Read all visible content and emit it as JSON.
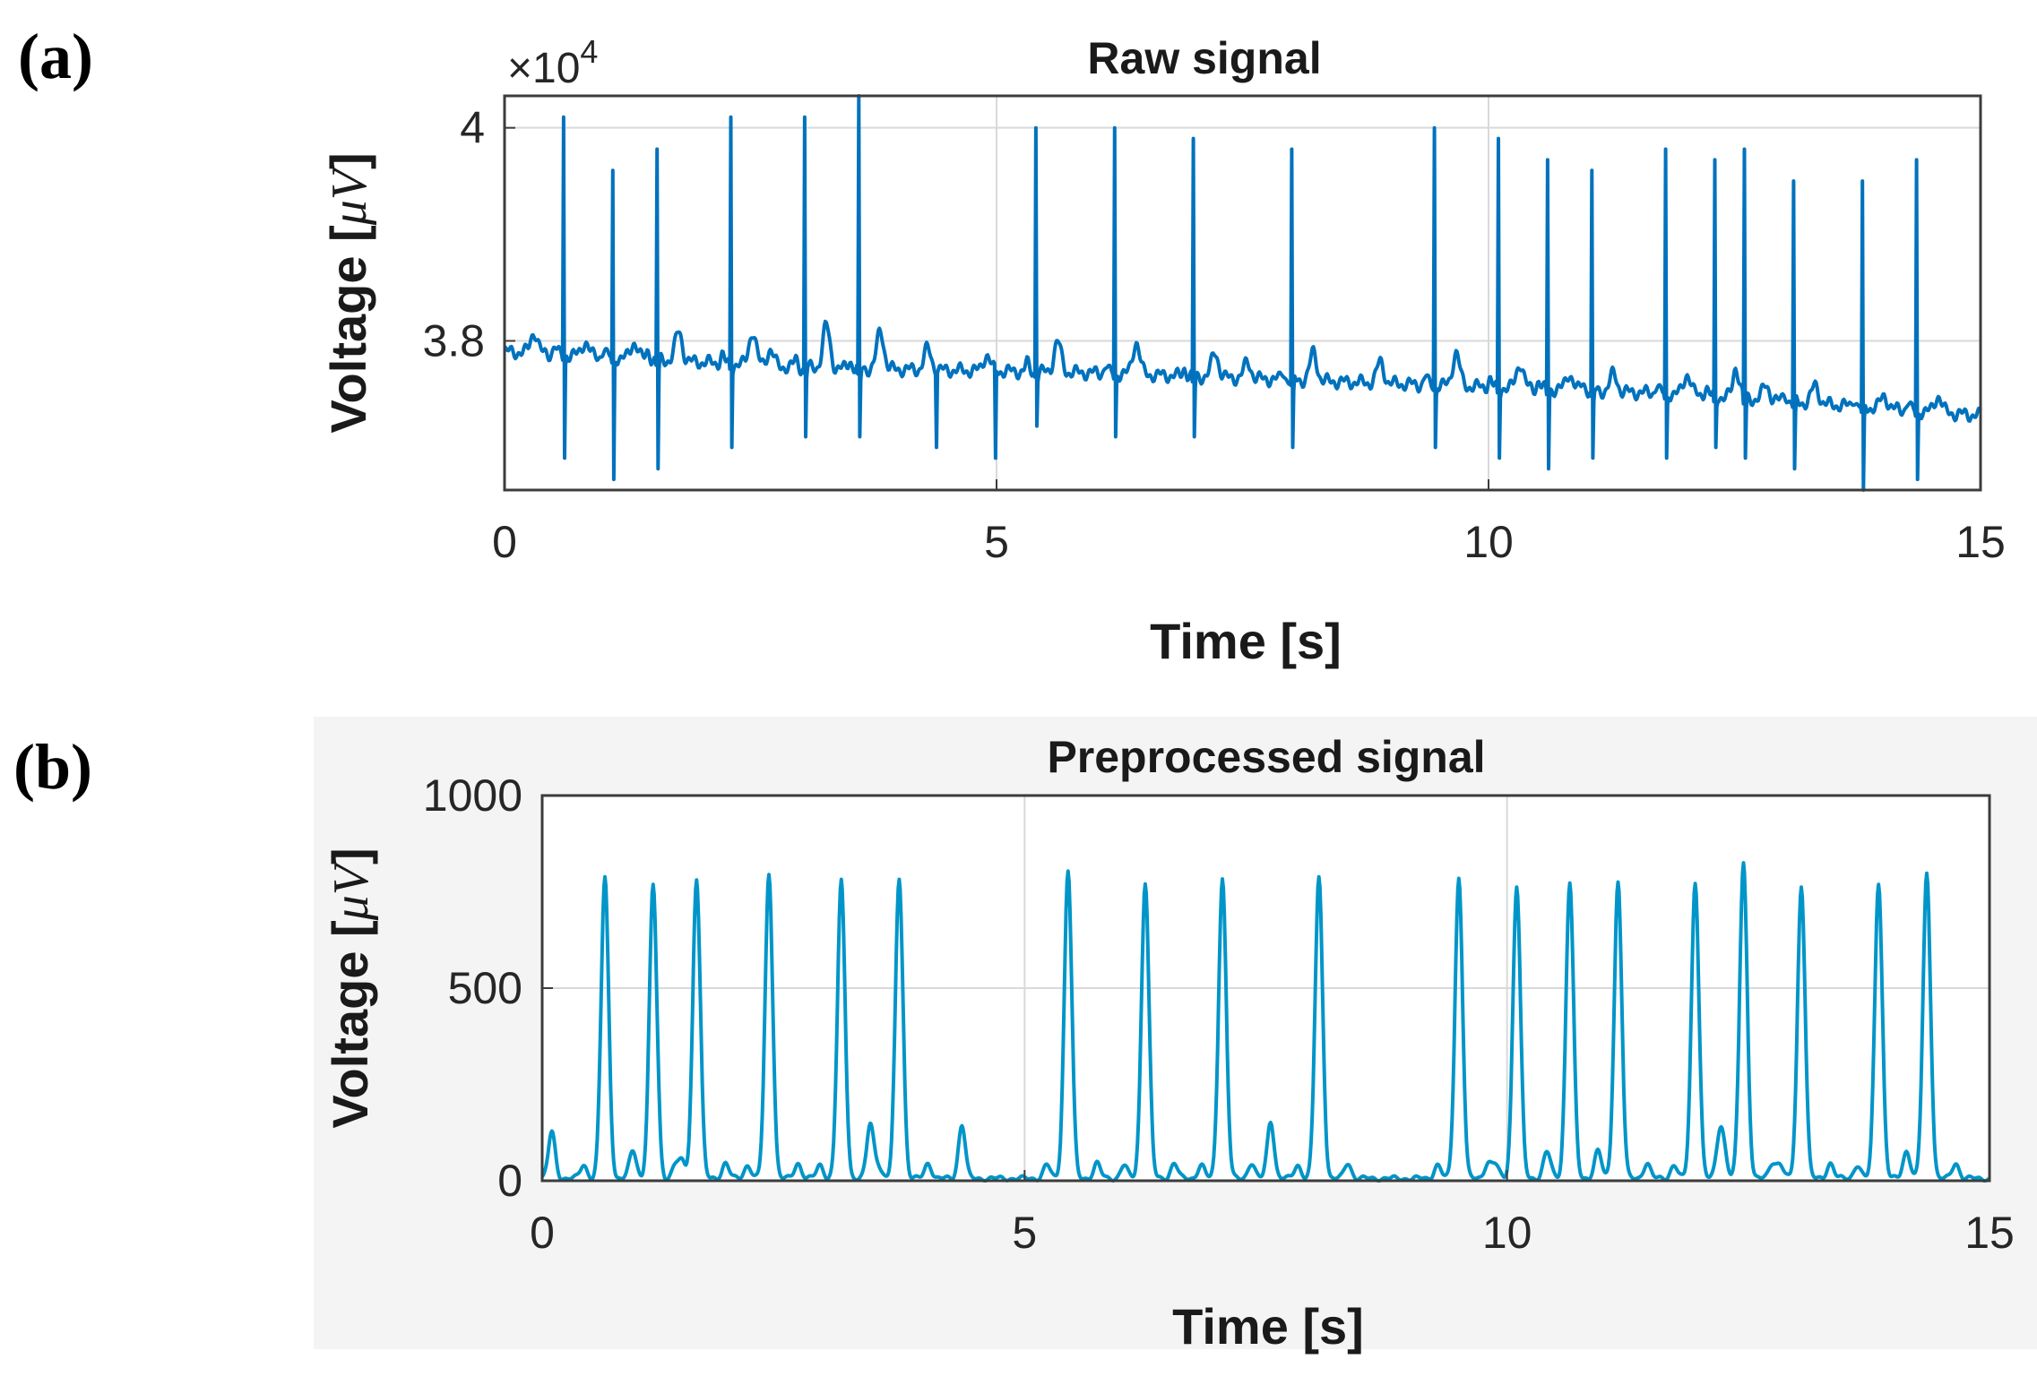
{
  "panels": {
    "a": "(a)",
    "b": "(b)"
  },
  "chart_data": [
    {
      "type": "line",
      "title": "Raw signal",
      "xlabel": "Time [s]",
      "ylabel_main": "Voltage [",
      "ylabel_unit": "μV",
      "ylabel_close": "]",
      "multiplier_base": "×10",
      "multiplier_exp": "4",
      "xlim": [
        0,
        15
      ],
      "ylim": [
        3.66,
        4.03
      ],
      "xticks": [
        0,
        5,
        10,
        15
      ],
      "xtick_labels": [
        "0",
        "5",
        "10",
        "15"
      ],
      "yticks": [
        3.8,
        4.0
      ],
      "ytick_labels": [
        "3.8",
        "4"
      ],
      "grid": true,
      "color": "#0072bd",
      "beats": [
        {
          "t": 0.6,
          "peak": 4.01,
          "dip": 3.69,
          "tw": 3.8
        },
        {
          "t": 1.1,
          "peak": 3.96,
          "dip": 3.67,
          "tw": 3.8
        },
        {
          "t": 1.55,
          "peak": 3.98,
          "dip": 3.68,
          "tw": 3.81
        },
        {
          "t": 2.3,
          "peak": 4.01,
          "dip": 3.7,
          "tw": 3.81
        },
        {
          "t": 3.05,
          "peak": 4.01,
          "dip": 3.71,
          "tw": 3.815
        },
        {
          "t": 3.6,
          "peak": 4.03,
          "dip": 3.71,
          "tw": 3.81
        },
        {
          "t": 5.4,
          "peak": 4.0,
          "dip": 3.72,
          "tw": 3.8
        },
        {
          "t": 6.2,
          "peak": 4.0,
          "dip": 3.71,
          "tw": 3.8
        },
        {
          "t": 7.0,
          "peak": 3.99,
          "dip": 3.71,
          "tw": 3.79
        },
        {
          "t": 8.0,
          "peak": 3.98,
          "dip": 3.7,
          "tw": 3.79
        },
        {
          "t": 9.45,
          "peak": 4.0,
          "dip": 3.7,
          "tw": 3.79
        },
        {
          "t": 10.1,
          "peak": 3.99,
          "dip": 3.69,
          "tw": 3.78
        },
        {
          "t": 10.6,
          "peak": 3.97,
          "dip": 3.68,
          "tw": 3.77
        },
        {
          "t": 11.05,
          "peak": 3.96,
          "dip": 3.69,
          "tw": 3.77
        },
        {
          "t": 11.8,
          "peak": 3.98,
          "dip": 3.69,
          "tw": 3.77
        },
        {
          "t": 12.3,
          "peak": 3.97,
          "dip": 3.7,
          "tw": 3.77
        },
        {
          "t": 12.6,
          "peak": 3.98,
          "dip": 3.69,
          "tw": 3.76
        },
        {
          "t": 13.1,
          "peak": 3.95,
          "dip": 3.68,
          "tw": 3.76
        },
        {
          "t": 13.8,
          "peak": 3.95,
          "dip": 3.66,
          "tw": 3.75
        },
        {
          "t": 14.35,
          "peak": 3.97,
          "dip": 3.67,
          "tw": 3.75
        }
      ],
      "extra_waves": [
        {
          "t": 0.3,
          "amp": 0.02
        },
        {
          "t": 2.7,
          "amp": 0.015
        },
        {
          "t": 4.3,
          "amp": 0.02,
          "dip": 3.7
        },
        {
          "t": 4.9,
          "amp": 0.015,
          "dip": 3.69
        },
        {
          "t": 7.55,
          "amp": 0.015
        },
        {
          "t": 8.9,
          "amp": 0.02
        }
      ],
      "baseline": [
        [
          0,
          3.79
        ],
        [
          3,
          3.775
        ],
        [
          6,
          3.77
        ],
        [
          9,
          3.76
        ],
        [
          12,
          3.75
        ],
        [
          15,
          3.73
        ]
      ]
    },
    {
      "type": "line",
      "title": "Preprocessed signal",
      "xlabel": "Time [s]",
      "ylabel_main": "Voltage [",
      "ylabel_unit": "μV",
      "ylabel_close": "]",
      "xlim": [
        0,
        15
      ],
      "ylim": [
        0,
        1000
      ],
      "xticks": [
        0,
        5,
        10,
        15
      ],
      "xtick_labels": [
        "0",
        "5",
        "10",
        "15"
      ],
      "yticks": [
        0,
        500,
        1000
      ],
      "ytick_labels": [
        "0",
        "500",
        "1000"
      ],
      "grid": true,
      "color": "#0095c8",
      "peaks": [
        {
          "t": 0.65,
          "v": 780
        },
        {
          "t": 1.15,
          "v": 760
        },
        {
          "t": 1.6,
          "v": 780
        },
        {
          "t": 2.35,
          "v": 790
        },
        {
          "t": 3.1,
          "v": 770
        },
        {
          "t": 3.7,
          "v": 780
        },
        {
          "t": 5.45,
          "v": 800
        },
        {
          "t": 6.25,
          "v": 770
        },
        {
          "t": 7.05,
          "v": 780
        },
        {
          "t": 8.05,
          "v": 780
        },
        {
          "t": 9.5,
          "v": 780
        },
        {
          "t": 10.1,
          "v": 760
        },
        {
          "t": 10.65,
          "v": 770
        },
        {
          "t": 11.15,
          "v": 770
        },
        {
          "t": 11.95,
          "v": 770
        },
        {
          "t": 12.45,
          "v": 820
        },
        {
          "t": 13.05,
          "v": 760
        },
        {
          "t": 13.85,
          "v": 770
        },
        {
          "t": 14.35,
          "v": 790
        }
      ],
      "bumps": [
        {
          "t": 0.1,
          "v": 120
        },
        {
          "t": 3.4,
          "v": 100
        },
        {
          "t": 4.35,
          "v": 140
        },
        {
          "t": 7.55,
          "v": 150
        },
        {
          "t": 12.2,
          "v": 90
        }
      ]
    }
  ]
}
